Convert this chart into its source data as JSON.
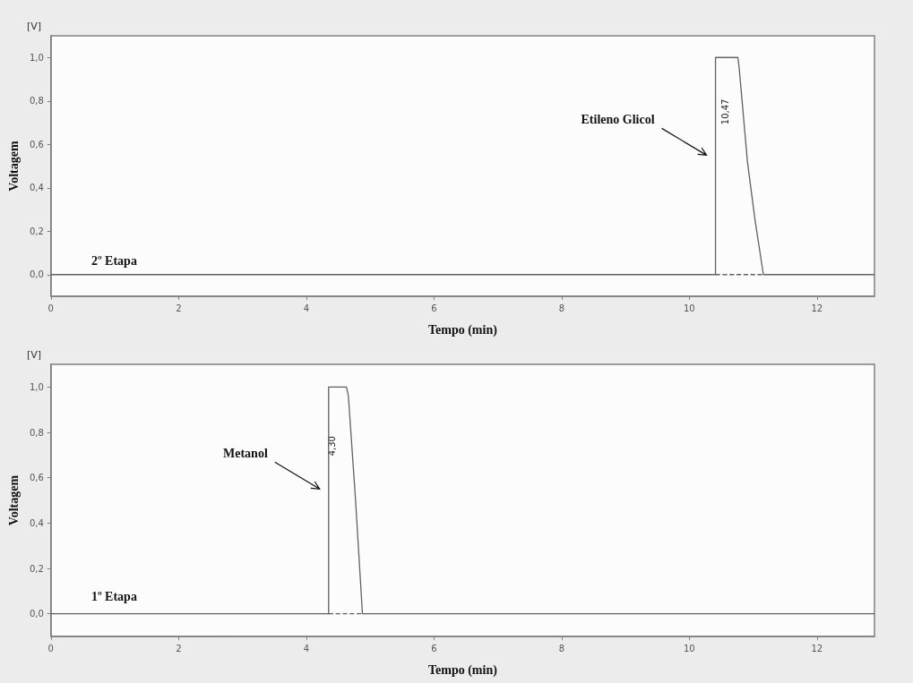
{
  "chart_data": [
    {
      "type": "line",
      "xlabel": "Tempo (min)",
      "ylabel": "Voltagem",
      "annotations": [
        "[V]",
        "2º Etapa",
        "Etileno Glicol",
        {
          "text": "10,47",
          "x": 10.47,
          "y": 0.75
        }
      ],
      "series": [
        {
          "color": "#606060",
          "line_style": "solid",
          "x": [
            0,
            10.41,
            10.41,
            10.76,
            10.78,
            10.91,
            11.03,
            11.16,
            12.9
          ],
          "values": [
            0,
            0,
            1.0,
            1.0,
            0.955,
            0.52,
            0.25,
            0,
            0
          ]
        },
        {
          "color": "#606060",
          "line_style": "dashed",
          "x": [
            10.41,
            11.16
          ],
          "values": [
            0,
            0
          ]
        }
      ],
      "xlim": [
        0,
        12.9
      ],
      "xticks": [
        0,
        2,
        4,
        6,
        8,
        10,
        12
      ],
      "ylim": [
        -0.1,
        1.1
      ],
      "yticks": [
        {
          "value": 0,
          "label": "0,0"
        },
        {
          "value": 0.2,
          "label": "0,2"
        },
        {
          "value": 0.4,
          "label": "0,4"
        },
        {
          "value": 0.6,
          "label": "0,6"
        },
        {
          "value": 0.8,
          "label": "0,8"
        },
        {
          "value": 1.0,
          "label": "1,0"
        }
      ],
      "grid": false,
      "marker": "none"
    },
    {
      "type": "line",
      "xlabel": "Tempo (min)",
      "ylabel": "Voltagem",
      "annotations": [
        "[V]",
        "1º Etapa",
        "Metanol",
        {
          "text": "4,30",
          "x": 4.3,
          "y": 0.74
        }
      ],
      "series": [
        {
          "color": "#606060",
          "line_style": "solid",
          "x": [
            0,
            4.35,
            4.35,
            4.63,
            4.66,
            4.77,
            4.88,
            12.9
          ],
          "values": [
            0,
            0,
            1.0,
            1.0,
            0.96,
            0.51,
            0,
            0
          ]
        },
        {
          "color": "#606060",
          "line_style": "dashed",
          "x": [
            4.35,
            4.88
          ],
          "values": [
            0,
            0
          ]
        }
      ],
      "xlim": [
        0,
        12.9
      ],
      "xticks": [
        0,
        2,
        4,
        6,
        8,
        10,
        12
      ],
      "ylim": [
        -0.1,
        1.1
      ],
      "yticks": [
        {
          "value": 0,
          "label": "0,0"
        },
        {
          "value": 0.2,
          "label": "0,2"
        },
        {
          "value": 0.4,
          "label": "0,4"
        },
        {
          "value": 0.6,
          "label": "0,6"
        },
        {
          "value": 0.8,
          "label": "0,8"
        },
        {
          "value": 1.0,
          "label": "1,0"
        }
      ],
      "grid": false,
      "marker": "none"
    }
  ]
}
